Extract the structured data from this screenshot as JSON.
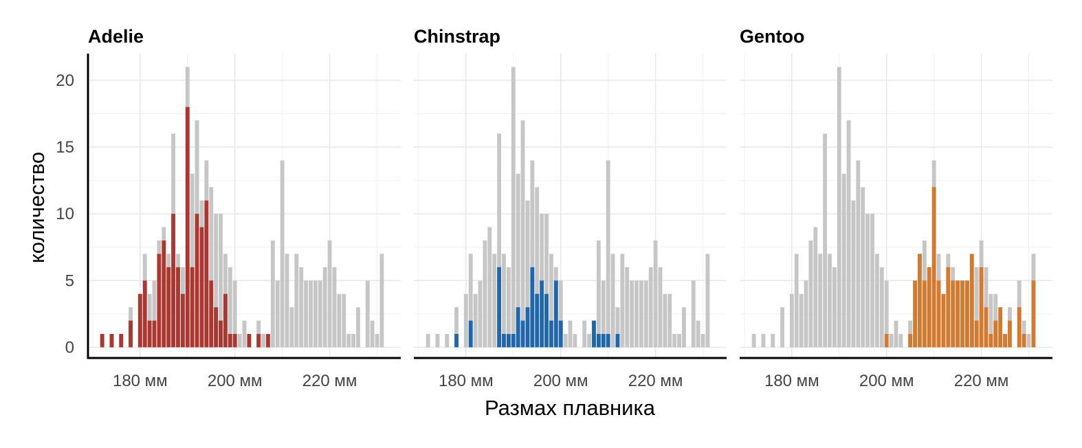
{
  "chart_data": {
    "type": "bar",
    "ylabel": "количество",
    "xlabel": "Размах плавника",
    "x_ticks": [
      {
        "value": 180,
        "label": "180 мм"
      },
      {
        "value": 200,
        "label": "200 мм"
      },
      {
        "value": 220,
        "label": "220 мм"
      }
    ],
    "y_ticks": [
      0,
      5,
      10,
      15,
      20
    ],
    "xlim": [
      169,
      235
    ],
    "ylim": [
      -0.8,
      22
    ],
    "bin_centers": [
      172,
      174,
      176,
      178,
      180,
      181,
      182,
      183,
      184,
      185,
      186,
      187,
      188,
      189,
      190,
      191,
      192,
      193,
      194,
      195,
      196,
      197,
      198,
      199,
      200,
      201,
      202,
      203,
      205,
      206,
      207,
      208,
      209,
      210,
      211,
      212,
      213,
      214,
      215,
      216,
      217,
      218,
      219,
      220,
      221,
      222,
      223,
      224,
      225,
      226,
      228,
      229,
      230,
      231
    ],
    "all_species_counts": [
      1,
      1,
      1,
      3,
      4,
      7,
      4,
      5,
      8,
      9,
      7,
      16,
      7,
      6,
      21,
      13,
      17,
      11,
      14,
      12,
      10,
      10,
      7,
      6,
      5,
      1,
      2,
      1,
      2,
      1,
      1,
      8,
      5,
      14,
      7,
      3,
      7,
      6,
      5,
      5,
      5,
      5,
      6,
      8,
      6,
      4,
      4,
      1,
      1,
      3,
      5,
      2,
      1,
      7
    ],
    "background_color": "#c6c6c6",
    "panels": [
      {
        "title": "Adelie",
        "color": "#ac3730",
        "counts": [
          1,
          1,
          1,
          2,
          4,
          5,
          2,
          2,
          7,
          8,
          6,
          10,
          6,
          4,
          18,
          6,
          10,
          9,
          11,
          5,
          3,
          2,
          4,
          1,
          1,
          0,
          0,
          1,
          1,
          0,
          1,
          0,
          0,
          0,
          0,
          0,
          0,
          0,
          0,
          0,
          0,
          0,
          0,
          0,
          0,
          0,
          0,
          0,
          0,
          0,
          0,
          0,
          0,
          0
        ]
      },
      {
        "title": "Chinstrap",
        "color": "#2066ad",
        "counts": [
          0,
          0,
          0,
          1,
          0,
          2,
          0,
          0,
          0,
          0,
          0,
          6,
          1,
          1,
          1,
          3,
          2,
          3,
          6,
          4,
          5,
          4,
          2,
          5,
          2,
          0,
          0,
          0,
          0,
          0,
          2,
          1,
          1,
          1,
          0,
          1,
          0,
          0,
          0,
          0,
          0,
          0,
          0,
          0,
          0,
          0,
          0,
          0,
          0,
          0,
          0,
          0,
          0,
          0
        ]
      },
      {
        "title": "Gentoo",
        "color": "#d37a2e",
        "counts": [
          0,
          0,
          0,
          0,
          0,
          0,
          0,
          0,
          0,
          0,
          0,
          0,
          0,
          0,
          0,
          0,
          0,
          0,
          0,
          0,
          0,
          0,
          0,
          0,
          1,
          0,
          0,
          0,
          1,
          5,
          7,
          5,
          6,
          12,
          5,
          4,
          6,
          5,
          5,
          5,
          5,
          7,
          2,
          6,
          3,
          1,
          2,
          3,
          1,
          2,
          3,
          1,
          0,
          5
        ]
      }
    ]
  }
}
